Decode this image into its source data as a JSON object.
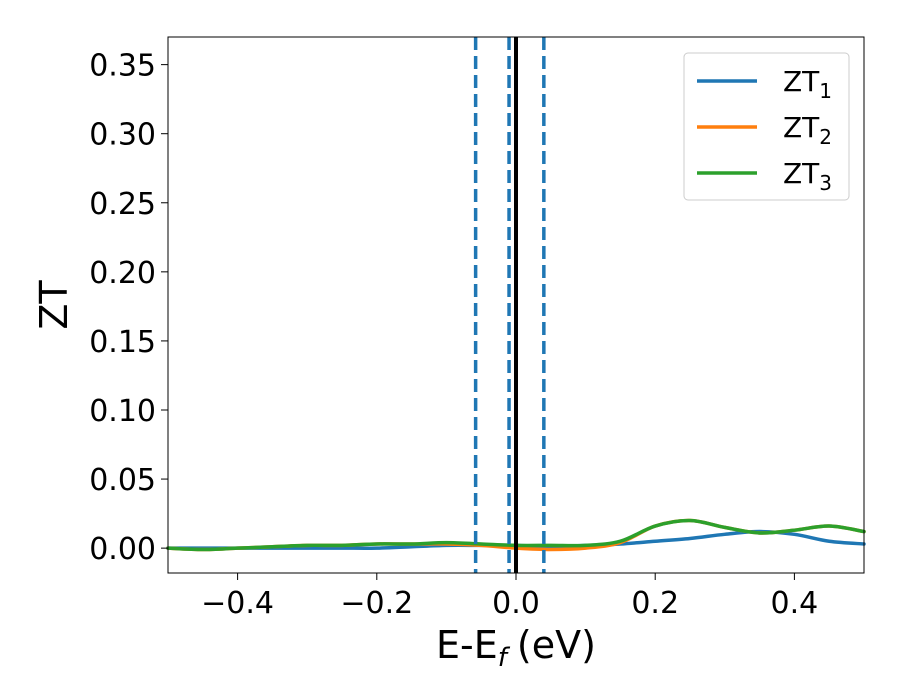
{
  "chart_data": {
    "type": "line",
    "xlabel": "E-E",
    "xlabel_sub": "f",
    "xlabel_unit": "(eV)",
    "ylabel": "ZT",
    "xlim": [
      -0.5,
      0.5
    ],
    "ylim": [
      -0.018,
      0.37
    ],
    "xticks": [
      -0.4,
      -0.2,
      0.0,
      0.2,
      0.4
    ],
    "xtick_labels": [
      "−0.4",
      "−0.2",
      "0.0",
      "0.2",
      "0.4"
    ],
    "yticks": [
      0.0,
      0.05,
      0.1,
      0.15,
      0.2,
      0.25,
      0.3,
      0.35
    ],
    "ytick_labels": [
      "0.00",
      "0.05",
      "0.10",
      "0.15",
      "0.20",
      "0.25",
      "0.30",
      "0.35"
    ],
    "grid": false,
    "legend": {
      "position": "top-right"
    },
    "vlines": [
      {
        "x": 0.0,
        "style": "solid",
        "color": "#000000"
      },
      {
        "x": -0.058,
        "style": "dashed",
        "color": "#1f77b4"
      },
      {
        "x": -0.01,
        "style": "dashed",
        "color": "#1f77b4"
      },
      {
        "x": 0.04,
        "style": "dashed",
        "color": "#1f77b4"
      }
    ],
    "series": [
      {
        "name": "ZT",
        "sub": "1",
        "color": "#1f77b4",
        "x": [
          -0.5,
          -0.45,
          -0.4,
          -0.35,
          -0.3,
          -0.25,
          -0.2,
          -0.15,
          -0.1,
          -0.05,
          0.0,
          0.05,
          0.1,
          0.15,
          0.2,
          0.25,
          0.3,
          0.35,
          0.4,
          0.45,
          0.5
        ],
        "y": [
          0.0,
          0.0,
          0.0,
          0.0,
          0.0,
          0.0,
          0.0,
          0.001,
          0.002,
          0.002,
          0.002,
          0.001,
          0.002,
          0.003,
          0.005,
          0.007,
          0.01,
          0.012,
          0.01,
          0.005,
          0.003
        ]
      },
      {
        "name": "ZT",
        "sub": "2",
        "color": "#ff7f0e",
        "x": [
          -0.5,
          -0.45,
          -0.4,
          -0.35,
          -0.3,
          -0.25,
          -0.2,
          -0.15,
          -0.1,
          -0.05,
          0.0,
          0.05,
          0.1,
          0.15,
          0.2,
          0.25,
          0.3,
          0.35,
          0.4,
          0.45,
          0.5
        ],
        "y": [
          0.0,
          -0.001,
          0.0,
          0.001,
          0.002,
          0.002,
          0.003,
          0.003,
          0.003,
          0.002,
          0.0,
          -0.001,
          0.0,
          0.004,
          0.016,
          0.02,
          0.015,
          0.011,
          0.013,
          0.016,
          0.012
        ]
      },
      {
        "name": "ZT",
        "sub": "3",
        "color": "#2ca02c",
        "x": [
          -0.5,
          -0.45,
          -0.4,
          -0.35,
          -0.3,
          -0.25,
          -0.2,
          -0.15,
          -0.1,
          -0.05,
          0.0,
          0.05,
          0.1,
          0.15,
          0.2,
          0.25,
          0.3,
          0.35,
          0.4,
          0.45,
          0.5
        ],
        "y": [
          0.0,
          -0.001,
          0.0,
          0.001,
          0.002,
          0.002,
          0.003,
          0.003,
          0.004,
          0.003,
          0.002,
          0.002,
          0.002,
          0.005,
          0.016,
          0.02,
          0.015,
          0.011,
          0.013,
          0.016,
          0.012
        ]
      }
    ]
  }
}
